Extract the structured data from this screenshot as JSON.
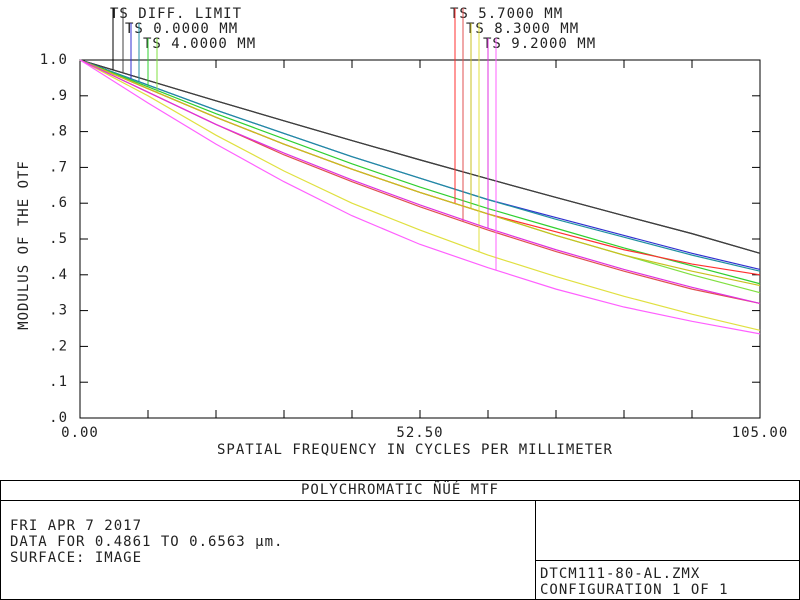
{
  "chart_data": {
    "type": "line",
    "title": "POLYCHROMATIC ÑÜÉ MTF",
    "x_label": "SPATIAL FREQUENCY IN CYCLES PER MILLIMETER",
    "y_label": "MODULUS OF THE OTF",
    "x": [
      0,
      10.5,
      21,
      31.5,
      42,
      52.5,
      63,
      73.5,
      84,
      94.5,
      105
    ],
    "xlim": [
      0,
      105
    ],
    "xticks": [
      {
        "value": 0,
        "label": "0.00"
      },
      {
        "value": 52.5,
        "label": "52.50"
      },
      {
        "value": 105,
        "label": "105.00"
      }
    ],
    "xminorticks": [
      10.5,
      21,
      31.5,
      42,
      63,
      73.5,
      84,
      94.5
    ],
    "ylim": [
      0,
      1
    ],
    "yticks": [
      {
        "value": 0,
        "label": ".0"
      },
      {
        "value": 0.1,
        "label": ".1"
      },
      {
        "value": 0.2,
        "label": ".2"
      },
      {
        "value": 0.3,
        "label": ".3"
      },
      {
        "value": 0.4,
        "label": ".4"
      },
      {
        "value": 0.5,
        "label": ".5"
      },
      {
        "value": 0.6,
        "label": ".6"
      },
      {
        "value": 0.7,
        "label": ".7"
      },
      {
        "value": 0.8,
        "label": ".8"
      },
      {
        "value": 0.9,
        "label": ".9"
      },
      {
        "value": 1,
        "label": "1.0"
      }
    ],
    "series": [
      {
        "name": "TS DIFF. LIMIT",
        "colors": [
          "#000000",
          "#404040"
        ],
        "values": [
          [
            1,
            0.943,
            0.886,
            0.83,
            0.775,
            0.721,
            0.668,
            0.616,
            0.565,
            0.515,
            0.46
          ],
          [
            1,
            0.943,
            0.886,
            0.83,
            0.775,
            0.721,
            0.668,
            0.616,
            0.565,
            0.515,
            0.46
          ]
        ]
      },
      {
        "name": "TS 0.0000 MM",
        "colors": [
          "#3030d0",
          "#2090a0"
        ],
        "values": [
          [
            1,
            0.93,
            0.86,
            0.795,
            0.73,
            0.67,
            0.61,
            0.56,
            0.51,
            0.46,
            0.415
          ],
          [
            1,
            0.93,
            0.86,
            0.795,
            0.73,
            0.67,
            0.61,
            0.555,
            0.505,
            0.455,
            0.41
          ]
        ]
      },
      {
        "name": "TS 4.0000 MM",
        "colors": [
          "#30d030",
          "#80e040"
        ],
        "values": [
          [
            1,
            0.925,
            0.85,
            0.78,
            0.71,
            0.645,
            0.585,
            0.53,
            0.475,
            0.425,
            0.375
          ],
          [
            1,
            0.92,
            0.84,
            0.765,
            0.695,
            0.63,
            0.57,
            0.51,
            0.455,
            0.4,
            0.35
          ]
        ]
      },
      {
        "name": "TS 5.7000 MM",
        "colors": [
          "#ff3030",
          "#e05050"
        ],
        "values": [
          [
            1,
            0.92,
            0.84,
            0.765,
            0.695,
            0.63,
            0.57,
            0.52,
            0.47,
            0.43,
            0.4
          ],
          [
            1,
            0.91,
            0.82,
            0.735,
            0.66,
            0.59,
            0.525,
            0.465,
            0.41,
            0.36,
            0.32
          ]
        ]
      },
      {
        "name": "TS 8.3000 MM",
        "colors": [
          "#c8c020",
          "#e0e040"
        ],
        "values": [
          [
            1,
            0.92,
            0.84,
            0.765,
            0.695,
            0.63,
            0.57,
            0.51,
            0.455,
            0.41,
            0.37
          ],
          [
            1,
            0.9,
            0.79,
            0.69,
            0.6,
            0.525,
            0.455,
            0.395,
            0.34,
            0.29,
            0.245
          ]
        ]
      },
      {
        "name": "TS 9.2000 MM",
        "colors": [
          "#e030e0",
          "#ff60ff"
        ],
        "values": [
          [
            1,
            0.91,
            0.82,
            0.74,
            0.665,
            0.595,
            0.53,
            0.47,
            0.415,
            0.365,
            0.32
          ],
          [
            1,
            0.88,
            0.765,
            0.66,
            0.565,
            0.485,
            0.42,
            0.36,
            0.31,
            0.27,
            0.235
          ]
        ]
      }
    ],
    "footer": {
      "date": "FRI APR 7 2017",
      "data_range": "DATA FOR 0.4861 TO 0.6563 µm.",
      "surface": "SURFACE: IMAGE",
      "file": "DTCM111-80-AL.ZMX",
      "configuration": "CONFIGURATION 1 OF 1"
    }
  }
}
